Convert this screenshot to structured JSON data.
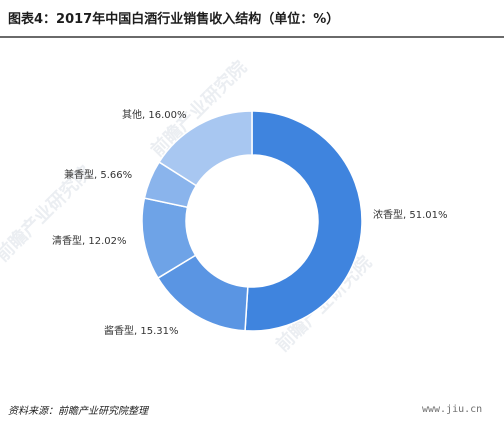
{
  "title": "图表4：2017年中国白酒行业销售收入结构（单位：%）",
  "source": "资料来源：前瞻产业研究院整理",
  "site": "www.jiu.cn",
  "watermark": "前瞻产业研究院",
  "colors": {
    "slice_1": "#3f84de",
    "slice_2": "#5a95e3",
    "slice_3": "#6ea3e7",
    "slice_4": "#8ab4ec",
    "slice_5": "#a8c7f1"
  },
  "chart_data": {
    "type": "pie",
    "donut": true,
    "title": "图表4：2017年中国白酒行业销售收入结构（单位：%）",
    "unit": "%",
    "slices": [
      {
        "label": "浓香型",
        "value": 51.01,
        "display": "浓香型, 51.01%"
      },
      {
        "label": "酱香型",
        "value": 15.31,
        "display": "酱香型, 15.31%"
      },
      {
        "label": "清香型",
        "value": 12.02,
        "display": "清香型, 12.02%"
      },
      {
        "label": "兼香型",
        "value": 5.66,
        "display": "兼香型, 5.66%"
      },
      {
        "label": "其他",
        "value": 16.0,
        "display": "其他, 16.00%"
      }
    ]
  }
}
